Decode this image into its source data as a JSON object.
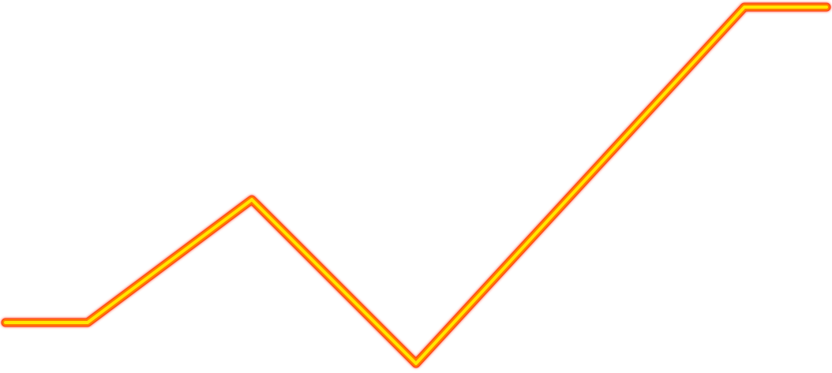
{
  "chart_data": {
    "type": "line",
    "title": "",
    "xlabel": "",
    "ylabel": "",
    "grid": false,
    "legend": "none",
    "x": [
      0,
      1,
      3,
      5,
      9,
      10
    ],
    "series": [
      {
        "values": [
          0.115,
          0.115,
          0.46,
          0.0,
          1.0,
          1.0
        ]
      }
    ],
    "xlim": [
      0,
      10
    ],
    "ylim": [
      0,
      1
    ],
    "colors": {
      "outer_glow": "#ff3b1f",
      "mid_stroke": "#ff7a00",
      "inner_stroke": "#ffe600",
      "background": "#ffffff"
    }
  }
}
